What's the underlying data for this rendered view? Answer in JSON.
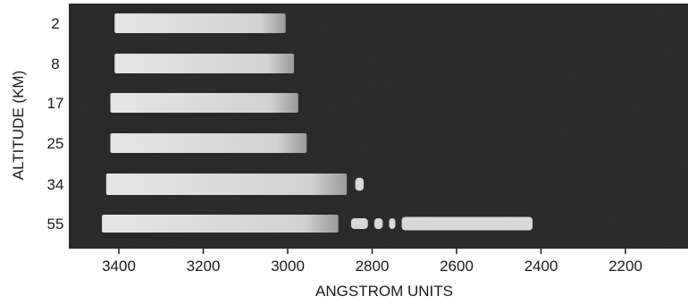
{
  "chart_data": {
    "type": "bar",
    "title": "",
    "xlabel": "ANGSTROM UNITS",
    "ylabel": "ALTITUDE (KM)",
    "x_ticks": [
      3400,
      3200,
      3000,
      2800,
      2600,
      2400,
      2200
    ],
    "xlim": [
      3500,
      2070
    ],
    "x_reversed": true,
    "categories": [
      "2",
      "8",
      "17",
      "25",
      "34",
      "55"
    ],
    "bars": [
      {
        "altitude": "2",
        "x_start": 3410,
        "x_end": 3005
      },
      {
        "altitude": "8",
        "x_start": 3410,
        "x_end": 2985
      },
      {
        "altitude": "17",
        "x_start": 3420,
        "x_end": 2975
      },
      {
        "altitude": "25",
        "x_start": 3420,
        "x_end": 2955
      },
      {
        "altitude": "34",
        "x_start": 3430,
        "x_end": 2860
      },
      {
        "altitude": "55",
        "x_start": 3440,
        "x_end": 2880
      }
    ],
    "fragments_55": [
      {
        "x_start": 2850,
        "x_end": 2810
      },
      {
        "x_start": 2795,
        "x_end": 2775
      },
      {
        "x_start": 2760,
        "x_end": 2745
      },
      {
        "x_start": 2730,
        "x_end": 2420
      }
    ],
    "fragments_34": [
      {
        "x_start": 2840,
        "x_end": 2820
      }
    ],
    "colors": {
      "background": "#2d2d2d",
      "band": "#dcdcdc"
    }
  }
}
